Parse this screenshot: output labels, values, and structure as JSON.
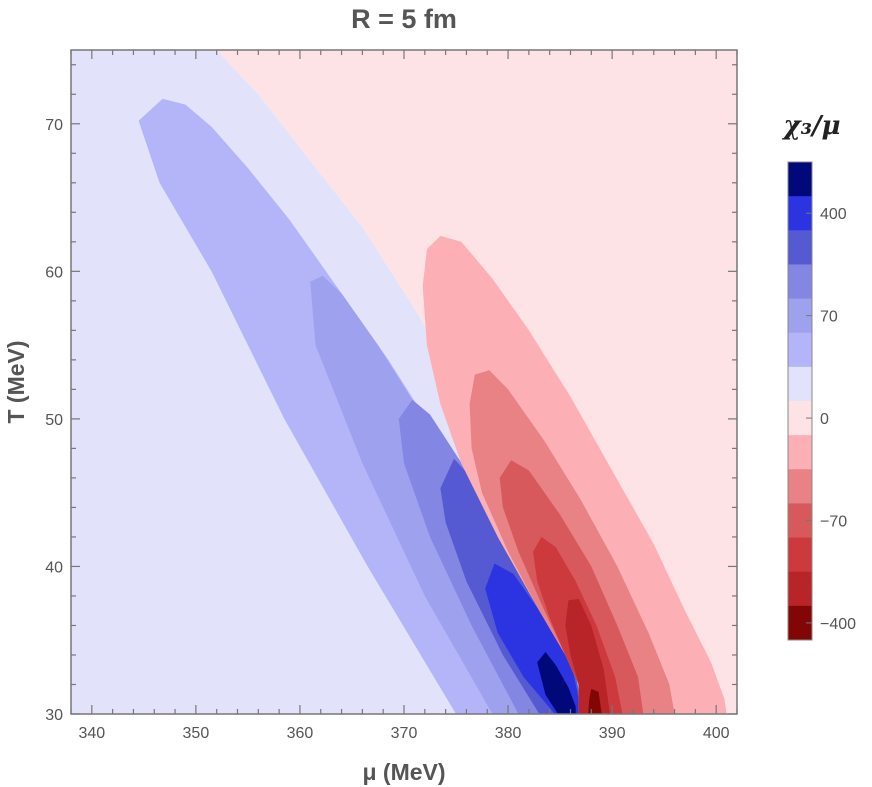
{
  "chart_data": {
    "type": "contour",
    "title": "R = 5 fm",
    "xlabel": "μ (MeV)",
    "ylabel": "T (MeV)",
    "xlim": [
      338,
      402
    ],
    "ylim": [
      30,
      75
    ],
    "x_ticks": [
      340,
      350,
      360,
      370,
      380,
      390,
      400
    ],
    "y_ticks": [
      30,
      40,
      50,
      60,
      70
    ],
    "x_tick_labels": [
      "340",
      "350",
      "360",
      "370",
      "380",
      "390",
      "400"
    ],
    "y_tick_labels": [
      "30",
      "40",
      "50",
      "60",
      "70"
    ],
    "colorbar": {
      "title": "χ₃/μ",
      "tick_labels": [
        "400",
        "70",
        "0",
        "−70",
        "−400"
      ],
      "tick_level_index": [
        1.5,
        4.5,
        7.5,
        10.5,
        13.5
      ],
      "colors_top_to_bottom": [
        "#00087a",
        "#2c33e0",
        "#5559d2",
        "#8386e2",
        "#9ea1ee",
        "#b3b5f8",
        "#e2e3fb",
        "#fde3e6",
        "#fcb0b5",
        "#e88284",
        "#d8595c",
        "#cd3a3d",
        "#b72528",
        "#820606"
      ]
    },
    "regions": [
      {
        "name": "positive-level-1",
        "fill": "#b3b5f8",
        "points": [
          [
            344.5,
            70.2
          ],
          [
            346.8,
            71.7
          ],
          [
            349.0,
            71.3
          ],
          [
            351.5,
            69.8
          ],
          [
            355.0,
            67.0
          ],
          [
            359.0,
            63.5
          ],
          [
            363.5,
            59.0
          ],
          [
            368.5,
            54.0
          ],
          [
            373.0,
            49.0
          ],
          [
            377.5,
            44.0
          ],
          [
            381.0,
            40.5
          ],
          [
            383.5,
            37.5
          ],
          [
            385.0,
            35.3
          ],
          [
            385.8,
            34.0
          ],
          [
            386.8,
            32.0
          ],
          [
            386.8,
            30.0
          ],
          [
            375.0,
            30.0
          ],
          [
            366.5,
            40.0
          ],
          [
            358.5,
            50.0
          ],
          [
            351.5,
            60.0
          ],
          [
            346.5,
            66.0
          ]
        ]
      },
      {
        "name": "positive-level-2",
        "fill": "#9ea1ee",
        "points": [
          [
            361.0,
            59.3
          ],
          [
            362.2,
            59.7
          ],
          [
            364.0,
            58.5
          ],
          [
            367.5,
            55.0
          ],
          [
            371.5,
            50.5
          ],
          [
            375.5,
            46.0
          ],
          [
            379.5,
            41.5
          ],
          [
            382.5,
            38.5
          ],
          [
            384.5,
            36.0
          ],
          [
            385.8,
            34.0
          ],
          [
            386.8,
            32.0
          ],
          [
            386.8,
            30.0
          ],
          [
            378.5,
            30.0
          ],
          [
            372.0,
            38.0
          ],
          [
            366.0,
            47.0
          ],
          [
            361.5,
            55.0
          ]
        ]
      },
      {
        "name": "positive-level-3",
        "fill": "#8386e2",
        "points": [
          [
            369.5,
            50.0
          ],
          [
            370.8,
            51.3
          ],
          [
            372.5,
            50.3
          ],
          [
            376.0,
            46.5
          ],
          [
            380.0,
            42.0
          ],
          [
            383.0,
            38.5
          ],
          [
            385.0,
            35.8
          ],
          [
            386.3,
            33.3
          ],
          [
            386.8,
            31.5
          ],
          [
            386.8,
            30.0
          ],
          [
            381.0,
            30.0
          ],
          [
            376.5,
            36.0
          ],
          [
            372.5,
            42.0
          ],
          [
            370.0,
            47.0
          ]
        ]
      },
      {
        "name": "positive-level-4",
        "fill": "#5559d2",
        "points": [
          [
            373.5,
            45.3
          ],
          [
            374.8,
            47.3
          ],
          [
            376.5,
            46.0
          ],
          [
            380.0,
            42.0
          ],
          [
            383.0,
            38.5
          ],
          [
            385.0,
            35.8
          ],
          [
            386.3,
            33.3
          ],
          [
            386.8,
            31.5
          ],
          [
            386.8,
            30.0
          ],
          [
            383.0,
            30.0
          ],
          [
            379.5,
            34.0
          ],
          [
            376.0,
            39.0
          ],
          [
            374.0,
            43.0
          ]
        ]
      },
      {
        "name": "positive-level-5",
        "fill": "#2c33e0",
        "points": [
          [
            377.8,
            38.5
          ],
          [
            378.7,
            40.2
          ],
          [
            380.5,
            39.5
          ],
          [
            383.0,
            37.0
          ],
          [
            385.0,
            34.8
          ],
          [
            386.3,
            32.7
          ],
          [
            386.8,
            31.0
          ],
          [
            386.8,
            30.0
          ],
          [
            384.5,
            30.0
          ],
          [
            381.5,
            32.5
          ],
          [
            379.0,
            35.5
          ]
        ]
      },
      {
        "name": "positive-level-6",
        "fill": "#00087a",
        "points": [
          [
            382.8,
            33.5
          ],
          [
            383.6,
            34.2
          ],
          [
            384.6,
            33.3
          ],
          [
            385.8,
            31.8
          ],
          [
            386.5,
            30.5
          ],
          [
            386.5,
            30.0
          ],
          [
            384.8,
            30.0
          ],
          [
            383.6,
            31.3
          ]
        ]
      },
      {
        "name": "negative-level-1",
        "fill": "#fcb0b5",
        "points": [
          [
            386.8,
            30.0
          ],
          [
            386.8,
            32.0
          ],
          [
            385.5,
            34.0
          ],
          [
            383.0,
            37.0
          ],
          [
            379.0,
            42.0
          ],
          [
            375.5,
            47.0
          ],
          [
            373.5,
            51.0
          ],
          [
            372.2,
            55.0
          ],
          [
            371.8,
            59.0
          ],
          [
            372.2,
            61.5
          ],
          [
            373.5,
            62.4
          ],
          [
            375.5,
            62.0
          ],
          [
            378.5,
            59.5
          ],
          [
            382.0,
            56.0
          ],
          [
            386.0,
            51.5
          ],
          [
            390.0,
            46.5
          ],
          [
            394.0,
            41.5
          ],
          [
            397.0,
            37.0
          ],
          [
            399.5,
            33.5
          ],
          [
            400.8,
            31.0
          ],
          [
            401.0,
            30.0
          ]
        ]
      },
      {
        "name": "negative-level-2",
        "fill": "#e88284",
        "points": [
          [
            386.8,
            30.0
          ],
          [
            386.8,
            32.0
          ],
          [
            385.5,
            34.0
          ],
          [
            383.0,
            37.0
          ],
          [
            380.0,
            41.0
          ],
          [
            377.5,
            45.0
          ],
          [
            376.5,
            48.0
          ],
          [
            376.3,
            51.0
          ],
          [
            376.8,
            53.0
          ],
          [
            378.2,
            53.3
          ],
          [
            380.0,
            52.0
          ],
          [
            383.5,
            48.5
          ],
          [
            387.0,
            44.5
          ],
          [
            390.5,
            40.0
          ],
          [
            393.5,
            35.5
          ],
          [
            395.5,
            32.0
          ],
          [
            396.0,
            30.0
          ]
        ]
      },
      {
        "name": "negative-level-3",
        "fill": "#d8595c",
        "points": [
          [
            386.8,
            30.0
          ],
          [
            386.8,
            32.0
          ],
          [
            385.5,
            34.0
          ],
          [
            383.5,
            37.0
          ],
          [
            381.0,
            41.0
          ],
          [
            379.5,
            44.0
          ],
          [
            379.2,
            46.0
          ],
          [
            380.3,
            47.2
          ],
          [
            382.0,
            46.5
          ],
          [
            385.0,
            43.5
          ],
          [
            388.0,
            40.0
          ],
          [
            390.5,
            36.0
          ],
          [
            392.5,
            32.5
          ],
          [
            393.0,
            30.0
          ]
        ]
      },
      {
        "name": "negative-level-4",
        "fill": "#cd3a3d",
        "points": [
          [
            386.8,
            30.0
          ],
          [
            386.8,
            32.0
          ],
          [
            385.5,
            34.0
          ],
          [
            384.0,
            36.5
          ],
          [
            382.8,
            39.0
          ],
          [
            382.4,
            41.0
          ],
          [
            383.2,
            42.0
          ],
          [
            384.6,
            41.3
          ],
          [
            386.5,
            39.0
          ],
          [
            388.5,
            36.0
          ],
          [
            390.3,
            32.5
          ],
          [
            391.0,
            30.0
          ]
        ]
      },
      {
        "name": "negative-level-5",
        "fill": "#b72528",
        "points": [
          [
            386.8,
            30.0
          ],
          [
            386.8,
            32.0
          ],
          [
            386.0,
            34.0
          ],
          [
            385.5,
            36.0
          ],
          [
            385.8,
            37.7
          ],
          [
            386.8,
            37.8
          ],
          [
            388.0,
            36.0
          ],
          [
            389.2,
            33.0
          ],
          [
            389.8,
            30.0
          ]
        ]
      },
      {
        "name": "negative-level-6",
        "fill": "#820606",
        "points": [
          [
            387.7,
            30.0
          ],
          [
            387.8,
            31.0
          ],
          [
            388.0,
            31.7
          ],
          [
            388.7,
            31.5
          ],
          [
            389.0,
            30.0
          ]
        ]
      }
    ],
    "background_regions": [
      {
        "name": "background-positive",
        "fill": "#e2e3fb",
        "points": [
          [
            338.0,
            30.0
          ],
          [
            338.0,
            75.0
          ],
          [
            352.0,
            75.0
          ],
          [
            356.0,
            72.0
          ],
          [
            361.0,
            67.5
          ],
          [
            366.0,
            63.0
          ],
          [
            371.0,
            57.5
          ],
          [
            376.0,
            51.5
          ],
          [
            380.0,
            46.0
          ],
          [
            383.0,
            41.5
          ],
          [
            385.0,
            37.5
          ],
          [
            386.5,
            34.0
          ],
          [
            387.0,
            30.0
          ]
        ]
      },
      {
        "name": "background-negative",
        "fill": "#fde3e6",
        "points": [
          [
            352.0,
            75.0
          ],
          [
            402.0,
            75.0
          ],
          [
            402.0,
            30.0
          ],
          [
            387.0,
            30.0
          ],
          [
            386.5,
            34.0
          ],
          [
            385.0,
            37.5
          ],
          [
            383.0,
            41.5
          ],
          [
            380.0,
            46.0
          ],
          [
            376.0,
            51.5
          ],
          [
            371.0,
            57.5
          ],
          [
            366.0,
            63.0
          ],
          [
            361.0,
            67.5
          ],
          [
            356.0,
            72.0
          ]
        ]
      }
    ]
  }
}
